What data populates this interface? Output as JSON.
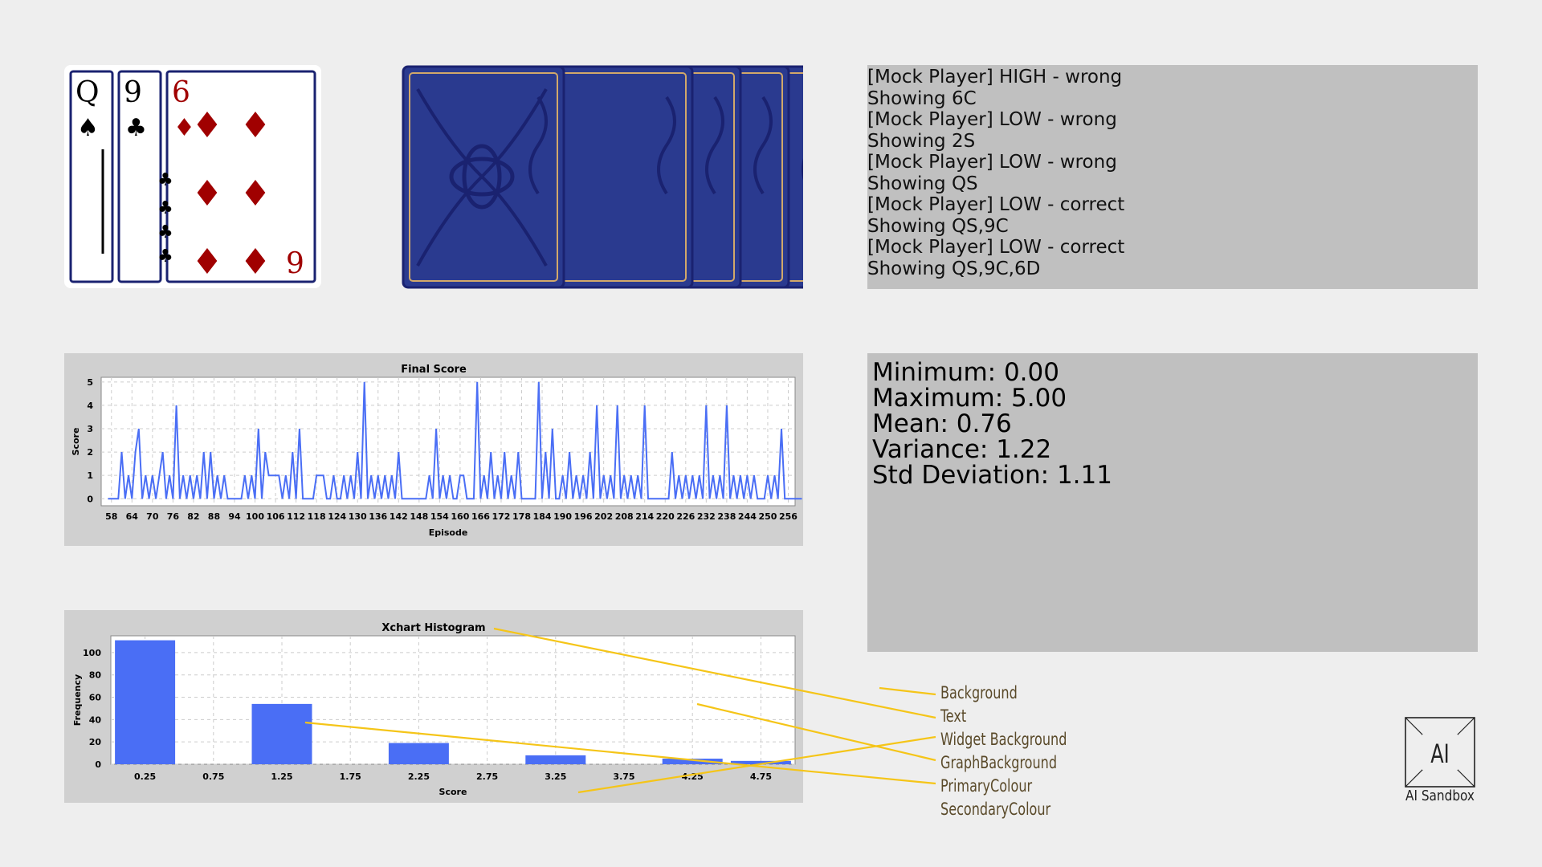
{
  "hand_cards": [
    {
      "rank": "Q",
      "suit": "spades",
      "suit_glyph": "♠",
      "color": "#000000"
    },
    {
      "rank": "9",
      "suit": "clubs",
      "suit_glyph": "♣",
      "color": "#000000"
    },
    {
      "rank": "6",
      "suit": "diamonds",
      "suit_glyph": "♦",
      "color": "#a00000"
    }
  ],
  "deck": {
    "face_down_count": 6,
    "back_color": "#2a3a8f",
    "border_color": "#1a2270",
    "accent_color": "#d2a86a"
  },
  "log": {
    "lines": [
      "[Mock Player] HIGH - wrong",
      "Showing 6C",
      "[Mock Player] LOW - wrong",
      "Showing 2S",
      "[Mock Player] LOW - wrong",
      "Showing QS",
      "[Mock Player] LOW - correct",
      "Showing QS,9C",
      "[Mock Player] LOW - correct",
      "Showing QS,9C,6D"
    ]
  },
  "stats": {
    "minimum": "Minimum: 0.00",
    "maximum": "Maximum: 5.00",
    "mean": "Mean: 0.76",
    "variance": "Variance: 1.22",
    "std_deviation": "Std Deviation: 1.11"
  },
  "legend": {
    "items": [
      "Background",
      "Text",
      "Widget Background",
      "GraphBackground",
      "PrimaryColour",
      "SecondaryColour"
    ],
    "line_color": "#f5c518"
  },
  "logo": {
    "mark": "AI",
    "label": "AI Sandbox"
  },
  "colors": {
    "primary": "#4a6ef5",
    "panel": "#c0c0c0",
    "chart_panel": "#d0d0d0"
  },
  "chart_data": [
    {
      "type": "line",
      "title": "Final Score",
      "xlabel": "Episode",
      "ylabel": "Score",
      "xlim": [
        55,
        258
      ],
      "ylim": [
        -0.3,
        5.2
      ],
      "x_ticks": [
        58,
        64,
        70,
        76,
        82,
        88,
        94,
        100,
        106,
        112,
        118,
        124,
        130,
        136,
        142,
        148,
        154,
        160,
        166,
        172,
        178,
        184,
        190,
        196,
        202,
        208,
        214,
        220,
        226,
        232,
        238,
        244,
        250,
        256
      ],
      "y_ticks": [
        0,
        1,
        2,
        3,
        4,
        5
      ],
      "grid": true,
      "x_start": 57,
      "values": [
        0,
        0,
        0,
        0,
        2,
        0,
        1,
        0,
        2,
        3,
        0,
        1,
        0,
        1,
        0,
        1,
        2,
        0,
        1,
        0,
        4,
        0,
        1,
        0,
        1,
        0,
        1,
        0,
        2,
        0,
        2,
        0,
        1,
        0,
        1,
        0,
        0,
        0,
        0,
        0,
        1,
        0,
        1,
        0,
        3,
        0,
        2,
        1,
        1,
        1,
        1,
        0,
        1,
        0,
        2,
        0,
        3,
        0,
        0,
        0,
        0,
        1,
        1,
        1,
        0,
        0,
        1,
        0,
        0,
        1,
        0,
        1,
        0,
        2,
        0,
        5,
        0,
        1,
        0,
        1,
        0,
        1,
        0,
        1,
        0,
        2,
        0,
        0,
        0,
        0,
        0,
        0,
        0,
        0,
        1,
        0,
        3,
        0,
        1,
        0,
        1,
        0,
        0,
        1,
        1,
        0,
        0,
        0,
        5,
        0,
        1,
        0,
        2,
        0,
        1,
        0,
        2,
        0,
        1,
        0,
        2,
        0,
        0,
        0,
        0,
        0,
        5,
        0,
        2,
        0,
        3,
        0,
        0,
        1,
        0,
        2,
        0,
        1,
        0,
        1,
        0,
        2,
        0,
        4,
        0,
        1,
        0,
        1,
        0,
        4,
        0,
        1,
        0,
        1,
        0,
        1,
        0,
        4,
        0,
        0,
        0,
        0,
        0,
        0,
        0,
        2,
        0,
        1,
        0,
        1,
        0,
        1,
        0,
        1,
        0,
        4,
        0,
        1,
        0,
        1,
        0,
        4,
        0,
        1,
        0,
        1,
        0,
        1,
        0,
        1,
        0,
        0,
        0,
        1,
        0,
        1,
        0,
        3,
        0,
        0,
        0,
        0,
        0,
        0
      ]
    },
    {
      "type": "bar",
      "title": "Xchart Histogram",
      "xlabel": "Score",
      "ylabel": "Frequency",
      "x_ticks": [
        "0.25",
        "0.75",
        "1.25",
        "1.75",
        "2.25",
        "2.75",
        "3.25",
        "3.75",
        "4.25",
        "4.75"
      ],
      "y_ticks": [
        0,
        20,
        40,
        60,
        80,
        100
      ],
      "ylim": [
        0,
        115
      ],
      "grid": true,
      "bins": [
        {
          "x": 0.25,
          "value": 111
        },
        {
          "x": 1.25,
          "value": 54
        },
        {
          "x": 2.25,
          "value": 19
        },
        {
          "x": 3.25,
          "value": 8
        },
        {
          "x": 4.25,
          "value": 5
        },
        {
          "x": 4.75,
          "value": 3
        }
      ]
    }
  ]
}
